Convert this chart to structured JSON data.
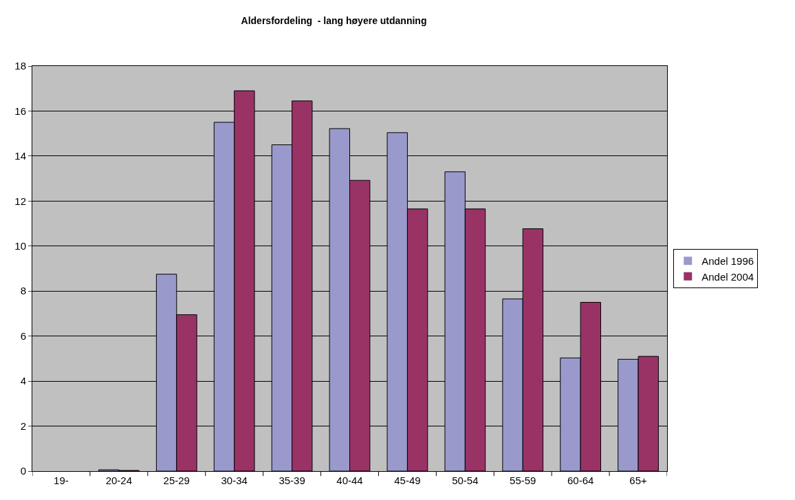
{
  "chart_data": {
    "type": "bar",
    "title": "Aldersfordeling  - lang høyere utdanning",
    "categories": [
      "19-",
      "20-24",
      "25-29",
      "30-34",
      "35-39",
      "40-44",
      "45-49",
      "50-54",
      "55-59",
      "60-64",
      "65+"
    ],
    "series": [
      {
        "name": "Andel 1996",
        "color": "#9999cc",
        "values": [
          0,
          0.06,
          8.75,
          15.5,
          14.5,
          15.22,
          15.04,
          13.3,
          7.65,
          5.03,
          4.97
        ]
      },
      {
        "name": "Andel 2004",
        "color": "#993366",
        "values": [
          0,
          0.03,
          6.95,
          16.9,
          16.45,
          12.92,
          11.65,
          11.65,
          10.77,
          7.5,
          5.1
        ]
      }
    ],
    "ylim": [
      0,
      18
    ],
    "yticks": [
      0,
      2,
      4,
      6,
      8,
      10,
      12,
      14,
      16,
      18
    ],
    "grid": "y",
    "legend": "right"
  }
}
